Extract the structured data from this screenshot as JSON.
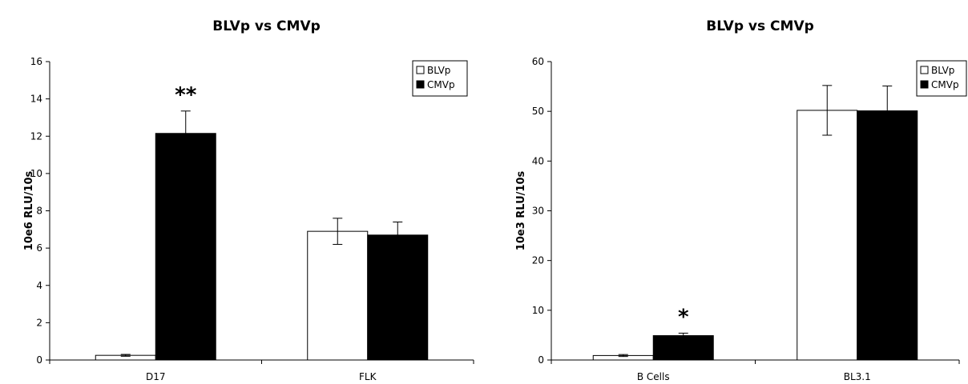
{
  "chart_data": [
    {
      "type": "bar",
      "title": "BLVp vs CMVp",
      "xlabel": "",
      "ylabel": "10e6 RLU/10s",
      "ylim": [
        0,
        16
      ],
      "yticks": [
        0,
        2,
        4,
        6,
        8,
        10,
        12,
        14,
        16
      ],
      "categories": [
        "D17",
        "FLK"
      ],
      "series": [
        {
          "name": "BLVp",
          "fill": "#ffffff",
          "values": [
            0.25,
            6.9
          ],
          "errors": [
            0.05,
            0.7
          ]
        },
        {
          "name": "CMVp",
          "fill": "#000000",
          "values": [
            12.15,
            6.7
          ],
          "errors": [
            1.2,
            0.7
          ]
        }
      ],
      "annotations": [
        {
          "category": "D17",
          "series": "CMVp",
          "text": "**"
        }
      ],
      "legend": "top-right",
      "grid": false
    },
    {
      "type": "bar",
      "title": "BLVp vs CMVp",
      "xlabel": "",
      "ylabel": "10e3 RLU/10s",
      "ylim": [
        0,
        60
      ],
      "yticks": [
        0,
        10,
        20,
        30,
        40,
        50,
        60
      ],
      "categories": [
        "B Cells",
        "BL3.1"
      ],
      "series": [
        {
          "name": "BLVp",
          "fill": "#ffffff",
          "values": [
            0.9,
            50.2
          ],
          "errors": [
            0.2,
            5.0
          ]
        },
        {
          "name": "CMVp",
          "fill": "#000000",
          "values": [
            4.9,
            50.1
          ],
          "errors": [
            0.5,
            5.0
          ]
        }
      ],
      "annotations": [
        {
          "category": "B Cells",
          "series": "CMVp",
          "text": "*"
        }
      ],
      "legend": "top-right",
      "grid": false
    }
  ]
}
